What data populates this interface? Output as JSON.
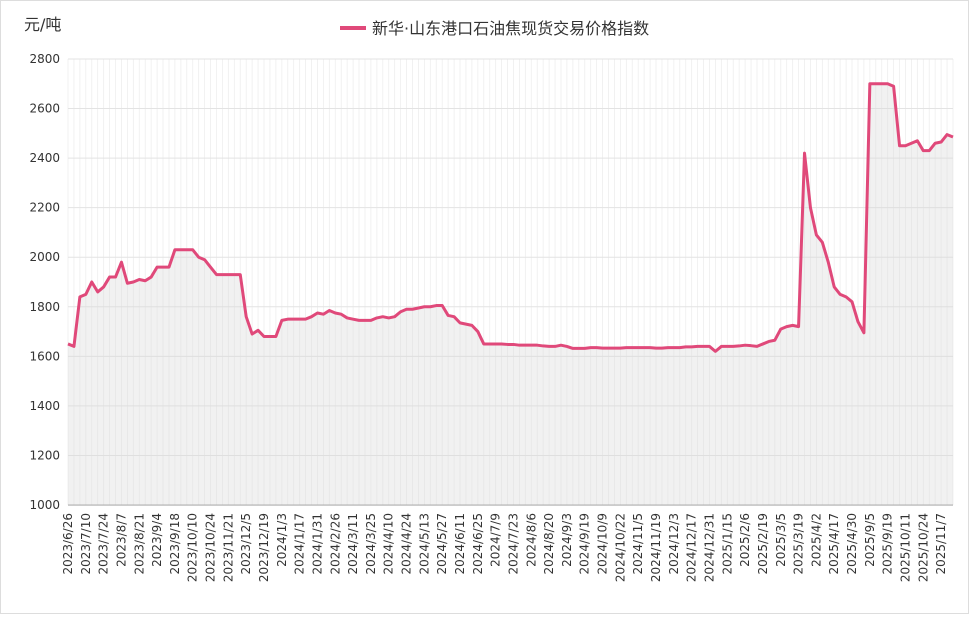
{
  "chart_data": {
    "type": "line",
    "y_label": "元/吨",
    "categories": [
      "2023/6/26",
      null,
      null,
      "2023/7/10",
      null,
      null,
      "2023/7/24",
      null,
      null,
      "2023/8/7",
      null,
      null,
      "2023/8/21",
      null,
      null,
      "2023/9/4",
      null,
      null,
      "2023/9/18",
      null,
      null,
      "2023/10/10",
      null,
      null,
      "2023/10/24",
      null,
      null,
      "2023/11/21",
      null,
      null,
      "2023/12/5",
      null,
      null,
      "2023/12/19",
      null,
      null,
      "2024/1/3",
      null,
      null,
      "2024/1/17",
      null,
      null,
      "2024/1/31",
      null,
      null,
      "2024/2/26",
      null,
      null,
      "2024/3/11",
      null,
      null,
      "2024/3/25",
      null,
      null,
      "2024/4/10",
      null,
      null,
      "2024/4/24",
      null,
      null,
      "2024/5/13",
      null,
      null,
      "2024/5/27",
      null,
      null,
      "2024/6/11",
      null,
      null,
      "2024/6/25",
      null,
      null,
      "2024/7/9",
      null,
      null,
      "2024/7/23",
      null,
      null,
      "2024/8/6",
      null,
      null,
      "2024/8/20",
      null,
      null,
      "2024/9/3",
      null,
      null,
      "2024/9/19",
      null,
      null,
      "2024/10/9",
      null,
      null,
      "2024/10/22",
      null,
      null,
      "2024/11/5",
      null,
      null,
      "2024/11/19",
      null,
      null,
      "2024/12/3",
      null,
      null,
      "2024/12/17",
      null,
      null,
      "2024/12/31",
      null,
      null,
      "2025/1/15",
      null,
      null,
      "2025/2/6",
      null,
      null,
      "2025/2/19",
      null,
      null,
      "2025/3/5",
      null,
      null,
      "2025/3/19",
      null,
      null,
      "2025/4/2",
      null,
      null,
      "2025/4/17",
      null,
      null,
      "2025/4/30",
      null,
      null,
      "2025/9/5",
      null,
      null,
      "2025/9/19",
      null,
      null,
      "2025/10/11",
      null,
      null,
      "2025/10/24",
      null,
      null,
      "2025/11/7",
      null,
      null
    ],
    "series": [
      {
        "name": "新华·山东港口石油焦现货交易价格指数",
        "color": "#e0497a",
        "values": [
          1650,
          1640,
          1840,
          1850,
          1900,
          1860,
          1880,
          1920,
          1920,
          1980,
          1895,
          1900,
          1910,
          1905,
          1920,
          1960,
          1960,
          1960,
          2030,
          2030,
          2030,
          2030,
          2000,
          1990,
          1960,
          1930,
          1930,
          1930,
          1930,
          1930,
          1760,
          1690,
          1705,
          1680,
          1680,
          1680,
          1745,
          1750,
          1750,
          1750,
          1750,
          1760,
          1775,
          1770,
          1785,
          1775,
          1770,
          1755,
          1750,
          1745,
          1745,
          1745,
          1755,
          1760,
          1755,
          1760,
          1780,
          1790,
          1790,
          1795,
          1800,
          1800,
          1805,
          1805,
          1765,
          1760,
          1735,
          1730,
          1725,
          1700,
          1650,
          1650,
          1650,
          1650,
          1648,
          1648,
          1645,
          1645,
          1645,
          1645,
          1642,
          1640,
          1640,
          1645,
          1640,
          1632,
          1632,
          1632,
          1635,
          1635,
          1633,
          1633,
          1633,
          1633,
          1635,
          1635,
          1635,
          1635,
          1635,
          1633,
          1633,
          1635,
          1635,
          1635,
          1638,
          1638,
          1640,
          1640,
          1640,
          1620,
          1640,
          1640,
          1640,
          1642,
          1645,
          1643,
          1640,
          1650,
          1660,
          1665,
          1710,
          1720,
          1725,
          1720,
          2420,
          2200,
          2090,
          2060,
          1980,
          1880,
          1850,
          1840,
          1820,
          1740,
          1695,
          2700,
          2700,
          2700,
          2700,
          2690,
          2450,
          2450,
          2460,
          2470,
          2430,
          2430,
          2460,
          2465,
          2495,
          2485
        ]
      }
    ],
    "ylim": [
      1000,
      2800
    ],
    "yticks": [
      1000,
      1200,
      1400,
      1600,
      1800,
      2000,
      2200,
      2400,
      2600,
      2800
    ],
    "grid": true
  }
}
